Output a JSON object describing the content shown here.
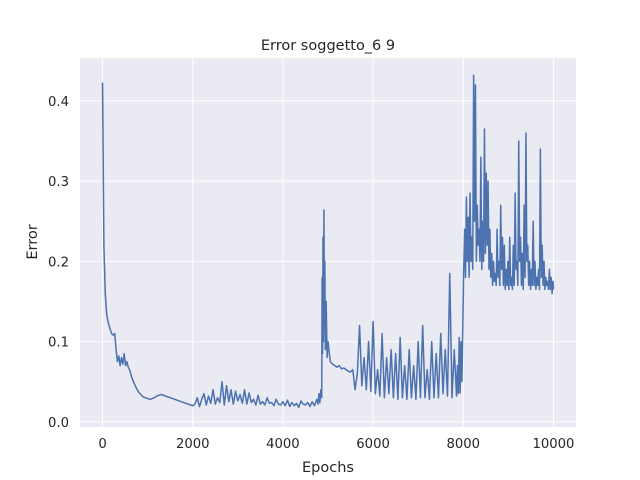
{
  "chart_data": {
    "type": "line",
    "title": "Error soggetto_6 9",
    "xlabel": "Epochs",
    "ylabel": "Error",
    "xlim": [
      -500,
      10500
    ],
    "ylim": [
      -0.0065,
      0.4535
    ],
    "xticks": [
      0,
      2000,
      4000,
      6000,
      8000,
      10000
    ],
    "yticks": [
      0.0,
      0.1,
      0.2,
      0.3,
      0.4
    ],
    "xtick_labels": [
      "0",
      "2000",
      "4000",
      "6000",
      "8000",
      "10000"
    ],
    "ytick_labels": [
      "0.0",
      "0.1",
      "0.2",
      "0.3",
      "0.4"
    ],
    "grid": true,
    "legend": "none",
    "colors": {
      "background": "#eaeaf2",
      "grid": "#ffffff",
      "line": "#4c72b0"
    },
    "series": [
      {
        "x": [
          0,
          30,
          60,
          90,
          120,
          160,
          200,
          240,
          270,
          300,
          330,
          360,
          390,
          420,
          450,
          480,
          510,
          540,
          570,
          600,
          650,
          700,
          750,
          800,
          850,
          900,
          950,
          1000,
          1050,
          1100,
          1150,
          1200,
          1250,
          1300,
          1400,
          1500,
          1600,
          1700,
          1800,
          1900,
          2000,
          2050,
          2100,
          2150,
          2200,
          2250,
          2300,
          2350,
          2400,
          2450,
          2500,
          2550,
          2600,
          2650,
          2700,
          2750,
          2800,
          2850,
          2900,
          2950,
          3000,
          3050,
          3100,
          3150,
          3200,
          3250,
          3300,
          3350,
          3400,
          3450,
          3500,
          3550,
          3600,
          3650,
          3700,
          3750,
          3800,
          3850,
          3900,
          3950,
          4000,
          4050,
          4100,
          4150,
          4200,
          4250,
          4300,
          4350,
          4400,
          4450,
          4500,
          4550,
          4600,
          4650,
          4700,
          4750,
          4780,
          4800,
          4820,
          4840,
          4860,
          4870,
          4880,
          4890,
          4900,
          4910,
          4920,
          4930,
          4940,
          4960,
          4980,
          5000,
          5050,
          5100,
          5150,
          5200,
          5250,
          5300,
          5350,
          5400,
          5450,
          5500,
          5550,
          5600,
          5650,
          5700,
          5750,
          5800,
          5850,
          5900,
          5950,
          6000,
          6050,
          6100,
          6150,
          6200,
          6250,
          6300,
          6350,
          6400,
          6450,
          6500,
          6550,
          6600,
          6650,
          6700,
          6750,
          6800,
          6850,
          6900,
          6950,
          7000,
          7050,
          7100,
          7150,
          7200,
          7250,
          7300,
          7350,
          7400,
          7450,
          7500,
          7550,
          7600,
          7650,
          7700,
          7750,
          7800,
          7850,
          7870,
          7890,
          7910,
          7930,
          7950,
          7970,
          7990,
          8010,
          8030,
          8050,
          8070,
          8090,
          8110,
          8130,
          8150,
          8170,
          8190,
          8210,
          8230,
          8250,
          8270,
          8290,
          8310,
          8330,
          8350,
          8370,
          8390,
          8410,
          8430,
          8450,
          8470,
          8490,
          8510,
          8530,
          8550,
          8570,
          8590,
          8610,
          8630,
          8650,
          8670,
          8690,
          8710,
          8730,
          8750,
          8770,
          8790,
          8810,
          8830,
          8850,
          8870,
          8890,
          8910,
          8930,
          8950,
          8970,
          8990,
          9010,
          9030,
          9050,
          9070,
          9090,
          9110,
          9130,
          9150,
          9170,
          9190,
          9210,
          9230,
          9250,
          9270,
          9290,
          9310,
          9330,
          9350,
          9370,
          9390,
          9410,
          9430,
          9450,
          9470,
          9490,
          9510,
          9530,
          9550,
          9570,
          9590,
          9610,
          9630,
          9650,
          9670,
          9690,
          9710,
          9730,
          9750,
          9770,
          9790,
          9810,
          9830,
          9850,
          9870,
          9890,
          9910,
          9930,
          9950,
          9970,
          9990,
          10000
        ],
        "y": [
          0.423,
          0.22,
          0.16,
          0.135,
          0.125,
          0.117,
          0.11,
          0.108,
          0.11,
          0.09,
          0.075,
          0.082,
          0.07,
          0.08,
          0.072,
          0.085,
          0.07,
          0.075,
          0.068,
          0.065,
          0.055,
          0.048,
          0.042,
          0.037,
          0.034,
          0.031,
          0.03,
          0.029,
          0.028,
          0.029,
          0.03,
          0.032,
          0.033,
          0.034,
          0.032,
          0.03,
          0.028,
          0.026,
          0.024,
          0.022,
          0.02,
          0.022,
          0.03,
          0.019,
          0.028,
          0.035,
          0.021,
          0.032,
          0.023,
          0.04,
          0.022,
          0.03,
          0.024,
          0.05,
          0.021,
          0.045,
          0.025,
          0.04,
          0.022,
          0.038,
          0.026,
          0.034,
          0.023,
          0.04,
          0.022,
          0.036,
          0.024,
          0.028,
          0.021,
          0.033,
          0.022,
          0.025,
          0.021,
          0.03,
          0.023,
          0.024,
          0.02,
          0.028,
          0.022,
          0.021,
          0.025,
          0.02,
          0.027,
          0.019,
          0.024,
          0.02,
          0.023,
          0.018,
          0.026,
          0.022,
          0.021,
          0.024,
          0.019,
          0.025,
          0.02,
          0.028,
          0.022,
          0.035,
          0.024,
          0.04,
          0.03,
          0.18,
          0.085,
          0.23,
          0.1,
          0.264,
          0.12,
          0.2,
          0.09,
          0.15,
          0.08,
          0.1,
          0.075,
          0.072,
          0.07,
          0.068,
          0.07,
          0.066,
          0.067,
          0.065,
          0.063,
          0.062,
          0.065,
          0.04,
          0.06,
          0.12,
          0.045,
          0.08,
          0.04,
          0.1,
          0.038,
          0.125,
          0.035,
          0.065,
          0.032,
          0.11,
          0.03,
          0.08,
          0.035,
          0.09,
          0.03,
          0.085,
          0.028,
          0.105,
          0.03,
          0.07,
          0.028,
          0.09,
          0.03,
          0.07,
          0.028,
          0.1,
          0.03,
          0.12,
          0.03,
          0.065,
          0.028,
          0.1,
          0.03,
          0.085,
          0.03,
          0.11,
          0.035,
          0.09,
          0.032,
          0.185,
          0.03,
          0.09,
          0.032,
          0.07,
          0.035,
          0.105,
          0.036,
          0.1,
          0.05,
          0.12,
          0.19,
          0.24,
          0.18,
          0.28,
          0.2,
          0.255,
          0.18,
          0.285,
          0.2,
          0.23,
          0.19,
          0.432,
          0.25,
          0.42,
          0.2,
          0.27,
          0.22,
          0.24,
          0.2,
          0.33,
          0.19,
          0.25,
          0.2,
          0.365,
          0.21,
          0.31,
          0.22,
          0.3,
          0.19,
          0.24,
          0.18,
          0.21,
          0.17,
          0.2,
          0.175,
          0.185,
          0.17,
          0.24,
          0.18,
          0.2,
          0.17,
          0.27,
          0.19,
          0.23,
          0.17,
          0.22,
          0.165,
          0.19,
          0.17,
          0.2,
          0.165,
          0.23,
          0.17,
          0.18,
          0.165,
          0.22,
          0.17,
          0.285,
          0.19,
          0.2,
          0.17,
          0.35,
          0.2,
          0.23,
          0.17,
          0.21,
          0.165,
          0.27,
          0.18,
          0.36,
          0.2,
          0.22,
          0.17,
          0.2,
          0.165,
          0.19,
          0.17,
          0.25,
          0.17,
          0.2,
          0.165,
          0.18,
          0.17,
          0.19,
          0.165,
          0.34,
          0.18,
          0.22,
          0.17,
          0.2,
          0.165,
          0.18,
          0.17,
          0.175,
          0.165,
          0.19,
          0.165,
          0.18,
          0.16,
          0.175,
          0.165
        ]
      }
    ]
  }
}
